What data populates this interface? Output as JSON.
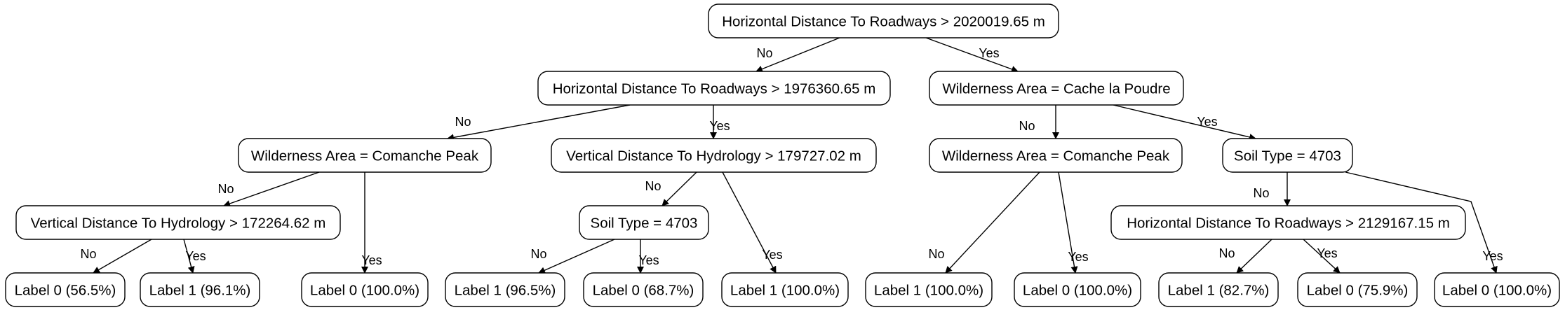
{
  "tree": {
    "nodes": [
      {
        "id": "n0",
        "label": "Horizontal Distance To Roadways > 2020019.65 m"
      },
      {
        "id": "n1",
        "label": "Horizontal Distance To Roadways > 1976360.65 m"
      },
      {
        "id": "n2",
        "label": "Wilderness Area = Cache la Poudre"
      },
      {
        "id": "n3",
        "label": "Wilderness Area = Comanche Peak"
      },
      {
        "id": "n4",
        "label": "Vertical Distance To Hydrology > 179727.02 m"
      },
      {
        "id": "n5",
        "label": "Wilderness Area = Comanche Peak"
      },
      {
        "id": "n6",
        "label": "Soil Type = 4703"
      },
      {
        "id": "n7",
        "label": "Vertical Distance To Hydrology > 172264.62 m"
      },
      {
        "id": "n8",
        "label": "Label 0 (100.0%)"
      },
      {
        "id": "n9",
        "label": "Soil Type = 4703"
      },
      {
        "id": "n10",
        "label": "Label 1 (100.0%)"
      },
      {
        "id": "n11",
        "label": "Label 1 (100.0%)"
      },
      {
        "id": "n12",
        "label": "Label 0 (100.0%)"
      },
      {
        "id": "n13",
        "label": "Horizontal Distance To Roadways > 2129167.15 m"
      },
      {
        "id": "n14",
        "label": "Label 0 (100.0%)"
      },
      {
        "id": "n15",
        "label": "Label 0 (56.5%)"
      },
      {
        "id": "n16",
        "label": "Label 1 (96.1%)"
      },
      {
        "id": "n17",
        "label": "Label 1 (96.5%)"
      },
      {
        "id": "n18",
        "label": "Label 0 (68.7%)"
      },
      {
        "id": "n19",
        "label": "Label 1 (82.7%)"
      },
      {
        "id": "n20",
        "label": "Label 0 (75.9%)"
      }
    ],
    "edges": [
      {
        "from": "n0",
        "to": "n1",
        "label": "No"
      },
      {
        "from": "n0",
        "to": "n2",
        "label": "Yes"
      },
      {
        "from": "n1",
        "to": "n3",
        "label": "No"
      },
      {
        "from": "n1",
        "to": "n4",
        "label": "Yes"
      },
      {
        "from": "n2",
        "to": "n5",
        "label": "No"
      },
      {
        "from": "n2",
        "to": "n6",
        "label": "Yes"
      },
      {
        "from": "n3",
        "to": "n7",
        "label": "No"
      },
      {
        "from": "n3",
        "to": "n8",
        "label": "Yes"
      },
      {
        "from": "n4",
        "to": "n9",
        "label": "No"
      },
      {
        "from": "n4",
        "to": "n10",
        "label": "Yes"
      },
      {
        "from": "n5",
        "to": "n11",
        "label": "No"
      },
      {
        "from": "n5",
        "to": "n12",
        "label": "Yes"
      },
      {
        "from": "n6",
        "to": "n13",
        "label": "No"
      },
      {
        "from": "n6",
        "to": "n14",
        "label": "Yes"
      },
      {
        "from": "n7",
        "to": "n15",
        "label": "No"
      },
      {
        "from": "n7",
        "to": "n16",
        "label": "Yes"
      },
      {
        "from": "n9",
        "to": "n17",
        "label": "No"
      },
      {
        "from": "n9",
        "to": "n18",
        "label": "Yes"
      },
      {
        "from": "n13",
        "to": "n19",
        "label": "No"
      },
      {
        "from": "n13",
        "to": "n20",
        "label": "Yes"
      }
    ]
  }
}
